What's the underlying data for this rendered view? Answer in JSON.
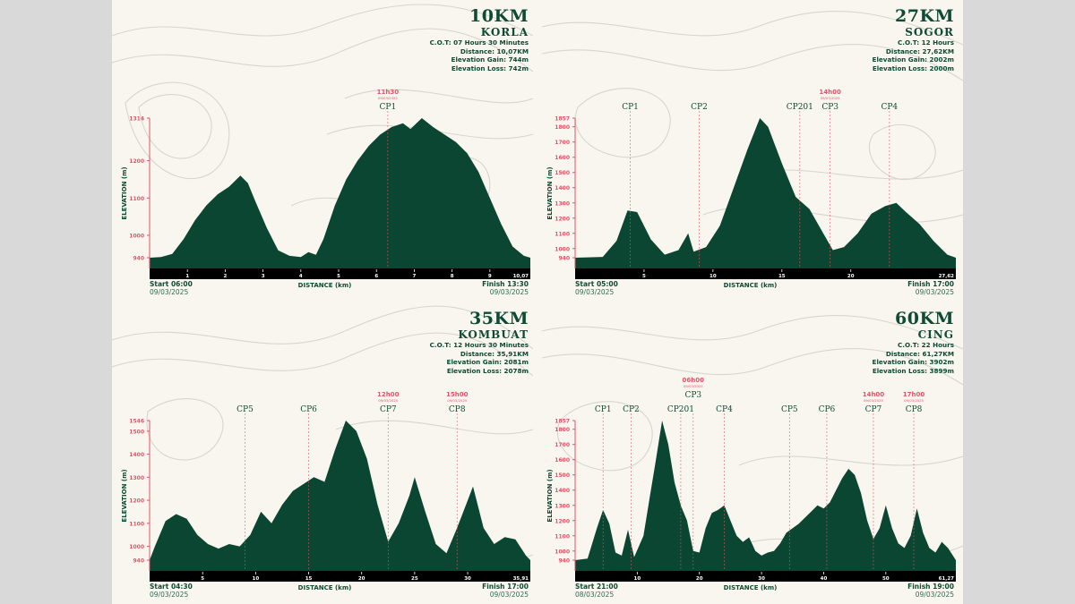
{
  "colors": {
    "fill": "#0b4633",
    "axis": "#e0546a",
    "band": "#000000",
    "bg": "#f8f6ee",
    "text": "#0f4a35",
    "accent": "#e0546a"
  },
  "axis_labels": {
    "y": "ELEVATION (m)",
    "x": "DISTANCE (km)"
  },
  "chart_data": [
    {
      "type": "area",
      "title": "10KM",
      "subtitle": "KORLA",
      "stats": {
        "cot": "C.O.T: 07 Hours 30 Minutes",
        "distance": "Distance: 10,07KM",
        "gain": "Elevation Gain: 744m",
        "loss": "Elevation Loss: 742m"
      },
      "xlabel": "DISTANCE (km)",
      "ylabel": "ELEVATION (m)",
      "xmax": 10.07,
      "ylim": [
        940,
        1314
      ],
      "yticks": [
        940,
        1000,
        1100,
        1200,
        1314
      ],
      "xticks": [
        1,
        2,
        3,
        4,
        5,
        6,
        7,
        8,
        9
      ],
      "xend_label": "10,07",
      "start": {
        "label": "Start 06:00",
        "date": "09/03/2025"
      },
      "finish": {
        "label": "Finish 13:30",
        "date": "09/03/2025"
      },
      "checkpoints": [
        {
          "name": "CP1",
          "km": 6.3,
          "cutoff": "11h30",
          "cutoff_date": "09/03/2025"
        }
      ],
      "profile": [
        [
          0,
          940
        ],
        [
          0.3,
          942
        ],
        [
          0.6,
          950
        ],
        [
          0.9,
          990
        ],
        [
          1.2,
          1040
        ],
        [
          1.5,
          1080
        ],
        [
          1.8,
          1110
        ],
        [
          2.1,
          1130
        ],
        [
          2.4,
          1160
        ],
        [
          2.6,
          1140
        ],
        [
          2.8,
          1090
        ],
        [
          3.1,
          1020
        ],
        [
          3.4,
          960
        ],
        [
          3.7,
          945
        ],
        [
          4.0,
          942
        ],
        [
          4.2,
          955
        ],
        [
          4.4,
          948
        ],
        [
          4.6,
          990
        ],
        [
          4.9,
          1080
        ],
        [
          5.2,
          1150
        ],
        [
          5.5,
          1200
        ],
        [
          5.8,
          1240
        ],
        [
          6.1,
          1270
        ],
        [
          6.4,
          1290
        ],
        [
          6.7,
          1300
        ],
        [
          6.9,
          1285
        ],
        [
          7.2,
          1314
        ],
        [
          7.5,
          1290
        ],
        [
          7.8,
          1270
        ],
        [
          8.1,
          1250
        ],
        [
          8.4,
          1220
        ],
        [
          8.7,
          1170
        ],
        [
          9.0,
          1100
        ],
        [
          9.3,
          1030
        ],
        [
          9.6,
          970
        ],
        [
          9.9,
          945
        ],
        [
          10.07,
          940
        ]
      ]
    },
    {
      "type": "area",
      "title": "27KM",
      "subtitle": "SOGOR",
      "stats": {
        "cot": "C.O.T: 12 Hours",
        "distance": "Distance: 27,62KM",
        "gain": "Elevation Gain: 2002m",
        "loss": "Elevation Loss: 2000m"
      },
      "xlabel": "DISTANCE (km)",
      "ylabel": "ELEVATION (m)",
      "xmax": 27.62,
      "ylim": [
        940,
        1857
      ],
      "yticks": [
        940,
        1000,
        1100,
        1200,
        1300,
        1400,
        1500,
        1600,
        1700,
        1800,
        1857
      ],
      "xticks": [
        5,
        10,
        15,
        20
      ],
      "xend_label": "27,62",
      "start": {
        "label": "Start 05:00",
        "date": "09/03/2025"
      },
      "finish": {
        "label": "Finish 17:00",
        "date": "09/03/2025"
      },
      "checkpoints": [
        {
          "name": "CP1",
          "km": 4.0
        },
        {
          "name": "CP2",
          "km": 9.0
        },
        {
          "name": "CP201",
          "km": 16.3
        },
        {
          "name": "CP3",
          "km": 18.5,
          "cutoff": "14h00",
          "cutoff_date": "09/03/2025"
        },
        {
          "name": "CP4",
          "km": 22.8
        }
      ],
      "profile": [
        [
          0,
          940
        ],
        [
          2,
          945
        ],
        [
          3,
          1050
        ],
        [
          3.8,
          1250
        ],
        [
          4.5,
          1240
        ],
        [
          5.5,
          1060
        ],
        [
          6.5,
          960
        ],
        [
          7.5,
          990
        ],
        [
          8.2,
          1100
        ],
        [
          8.6,
          980
        ],
        [
          9.5,
          1010
        ],
        [
          10.5,
          1150
        ],
        [
          11.5,
          1400
        ],
        [
          12.5,
          1650
        ],
        [
          13.4,
          1857
        ],
        [
          14,
          1800
        ],
        [
          15,
          1560
        ],
        [
          16,
          1340
        ],
        [
          17,
          1260
        ],
        [
          18,
          1100
        ],
        [
          18.7,
          990
        ],
        [
          19.5,
          1010
        ],
        [
          20.5,
          1100
        ],
        [
          21.5,
          1230
        ],
        [
          22.5,
          1280
        ],
        [
          23.3,
          1300
        ],
        [
          24,
          1240
        ],
        [
          25,
          1160
        ],
        [
          26,
          1050
        ],
        [
          27,
          960
        ],
        [
          27.62,
          940
        ]
      ]
    },
    {
      "type": "area",
      "title": "35KM",
      "subtitle": "KOMBUAT",
      "stats": {
        "cot": "C.O.T: 12 Hours 30 Minutes",
        "distance": "Distance: 35,91KM",
        "gain": "Elevation Gain: 2081m",
        "loss": "Elevation Loss: 2078m"
      },
      "xlabel": "DISTANCE (km)",
      "ylabel": "ELEVATION (m)",
      "xmax": 35.91,
      "ylim": [
        940,
        1546
      ],
      "yticks": [
        940,
        1000,
        1100,
        1200,
        1300,
        1400,
        1500,
        1546
      ],
      "xticks": [
        5,
        10,
        15,
        20,
        25,
        30
      ],
      "xend_label": "35,91",
      "start": {
        "label": "Start 04:30",
        "date": "09/03/2025"
      },
      "finish": {
        "label": "Finish 17:00",
        "date": "09/03/2025"
      },
      "checkpoints": [
        {
          "name": "CP5",
          "km": 9.0
        },
        {
          "name": "CP6",
          "km": 15.0
        },
        {
          "name": "CP7",
          "km": 22.5,
          "cutoff": "12h00",
          "cutoff_date": "09/03/2025"
        },
        {
          "name": "CP8",
          "km": 29.0,
          "cutoff": "15h00",
          "cutoff_date": "09/03/2025"
        }
      ],
      "profile": [
        [
          0,
          940
        ],
        [
          0.5,
          1000
        ],
        [
          1.5,
          1110
        ],
        [
          2.5,
          1140
        ],
        [
          3.5,
          1120
        ],
        [
          4.5,
          1050
        ],
        [
          5.5,
          1010
        ],
        [
          6.5,
          990
        ],
        [
          7.5,
          1010
        ],
        [
          8.5,
          1000
        ],
        [
          9.5,
          1050
        ],
        [
          10.5,
          1150
        ],
        [
          11.5,
          1100
        ],
        [
          12.5,
          1180
        ],
        [
          13.5,
          1240
        ],
        [
          14.5,
          1270
        ],
        [
          15.5,
          1300
        ],
        [
          16.5,
          1280
        ],
        [
          17.5,
          1420
        ],
        [
          18.5,
          1546
        ],
        [
          19.5,
          1500
        ],
        [
          20.5,
          1380
        ],
        [
          21.5,
          1180
        ],
        [
          22.5,
          1020
        ],
        [
          23.5,
          1100
        ],
        [
          24.5,
          1220
        ],
        [
          25,
          1300
        ],
        [
          26,
          1150
        ],
        [
          27,
          1010
        ],
        [
          28,
          970
        ],
        [
          29,
          1080
        ],
        [
          30,
          1200
        ],
        [
          30.5,
          1260
        ],
        [
          31.5,
          1080
        ],
        [
          32.5,
          1010
        ],
        [
          33.5,
          1040
        ],
        [
          34.5,
          1030
        ],
        [
          35.5,
          960
        ],
        [
          35.91,
          940
        ]
      ]
    },
    {
      "type": "area",
      "title": "60KM",
      "subtitle": "CING",
      "stats": {
        "cot": "C.O.T: 22 Hours",
        "distance": "Distance: 61,27KM",
        "gain": "Elevation Gain: 3902m",
        "loss": "Elevation Loss: 3899m"
      },
      "xlabel": "DISTANCE (km)",
      "ylabel": "ELEVATION (m)",
      "xmax": 61.27,
      "ylim": [
        940,
        1857
      ],
      "yticks": [
        940,
        1000,
        1100,
        1200,
        1300,
        1400,
        1500,
        1600,
        1700,
        1800,
        1857
      ],
      "xticks": [
        10,
        20,
        30,
        40,
        50
      ],
      "xend_label": "61,27",
      "start": {
        "label": "Start 21:00",
        "date": "08/03/2025"
      },
      "finish": {
        "label": "Finish 19:00",
        "date": "09/03/2025"
      },
      "checkpoints": [
        {
          "name": "CP1",
          "km": 4.5
        },
        {
          "name": "CP2",
          "km": 9.0
        },
        {
          "name": "CP201",
          "km": 17.0
        },
        {
          "name": "CP3",
          "km": 19.0,
          "cutoff": "06h00",
          "cutoff_date": "09/03/2025"
        },
        {
          "name": "CP4",
          "km": 24.0
        },
        {
          "name": "CP5",
          "km": 34.5
        },
        {
          "name": "CP6",
          "km": 40.5
        },
        {
          "name": "CP7",
          "km": 48.0,
          "cutoff": "14h00",
          "cutoff_date": "09/03/2025"
        },
        {
          "name": "CP8",
          "km": 54.5,
          "cutoff": "17h00",
          "cutoff_date": "09/03/2025"
        }
      ],
      "profile": [
        [
          0,
          940
        ],
        [
          2,
          950
        ],
        [
          3.5,
          1150
        ],
        [
          4.5,
          1270
        ],
        [
          5.5,
          1180
        ],
        [
          6.5,
          990
        ],
        [
          7.5,
          970
        ],
        [
          8.5,
          1140
        ],
        [
          9.5,
          960
        ],
        [
          11,
          1100
        ],
        [
          12,
          1350
        ],
        [
          13,
          1600
        ],
        [
          14,
          1857
        ],
        [
          15,
          1700
        ],
        [
          16,
          1450
        ],
        [
          17,
          1300
        ],
        [
          18,
          1200
        ],
        [
          19,
          1000
        ],
        [
          20,
          990
        ],
        [
          21,
          1150
        ],
        [
          22,
          1250
        ],
        [
          23,
          1270
        ],
        [
          24,
          1300
        ],
        [
          25,
          1200
        ],
        [
          26,
          1100
        ],
        [
          27,
          1060
        ],
        [
          28,
          1090
        ],
        [
          29,
          1000
        ],
        [
          30,
          970
        ],
        [
          31,
          990
        ],
        [
          32,
          1000
        ],
        [
          33,
          1050
        ],
        [
          34,
          1120
        ],
        [
          35,
          1150
        ],
        [
          36,
          1180
        ],
        [
          37,
          1220
        ],
        [
          38,
          1260
        ],
        [
          39,
          1300
        ],
        [
          40,
          1280
        ],
        [
          41,
          1320
        ],
        [
          42,
          1400
        ],
        [
          43,
          1480
        ],
        [
          44,
          1540
        ],
        [
          45,
          1500
        ],
        [
          46,
          1380
        ],
        [
          47,
          1200
        ],
        [
          48,
          1080
        ],
        [
          49,
          1150
        ],
        [
          50,
          1300
        ],
        [
          51,
          1150
        ],
        [
          52,
          1050
        ],
        [
          53,
          1020
        ],
        [
          54,
          1100
        ],
        [
          55,
          1280
        ],
        [
          56,
          1120
        ],
        [
          57,
          1020
        ],
        [
          58,
          990
        ],
        [
          59,
          1060
        ],
        [
          60,
          1020
        ],
        [
          61.27,
          940
        ]
      ]
    }
  ]
}
